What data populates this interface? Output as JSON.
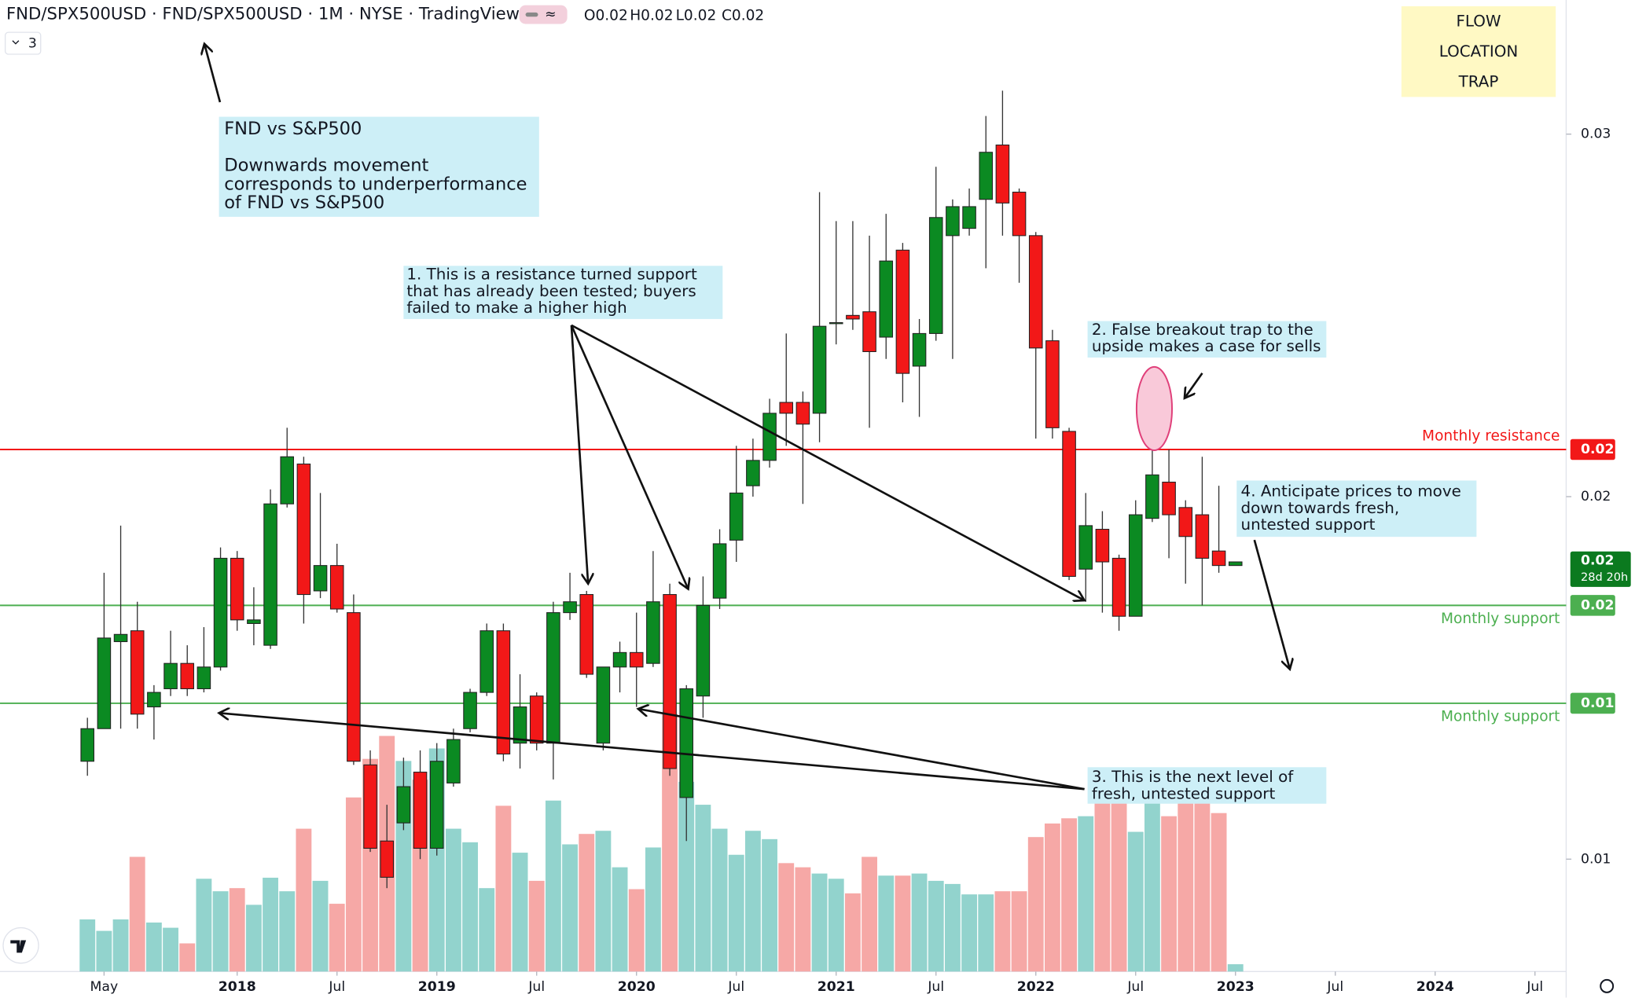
{
  "header": {
    "title": "FND/SPX500USD · FND/SPX500USD · 1M · NYSE · TradingView",
    "ohlc": [
      "O0.02",
      "H0.02",
      "L0.02",
      "C0.02"
    ],
    "indicators": "3"
  },
  "toolbar": [
    "FLOW",
    "LOCATION",
    "TRAP"
  ],
  "chart_data": {
    "type": "candlestick",
    "x": [
      "2017-04",
      "2017-05",
      "2017-06",
      "2017-07",
      "2017-08",
      "2017-09",
      "2017-10",
      "2017-11",
      "2017-12",
      "2018-01",
      "2018-02",
      "2018-03",
      "2018-04",
      "2018-05",
      "2018-06",
      "2018-07",
      "2018-08",
      "2018-09",
      "2018-10",
      "2018-11",
      "2018-12",
      "2019-01",
      "2019-02",
      "2019-03",
      "2019-04",
      "2019-05",
      "2019-06",
      "2019-07",
      "2019-08",
      "2019-09",
      "2019-10",
      "2019-11",
      "2019-12",
      "2020-01",
      "2020-02",
      "2020-03",
      "2020-04",
      "2020-05",
      "2020-06",
      "2020-07",
      "2020-08",
      "2020-09",
      "2020-10",
      "2020-11",
      "2020-12",
      "2021-01",
      "2021-02",
      "2021-03",
      "2021-04",
      "2021-05",
      "2021-06",
      "2021-07",
      "2021-08",
      "2021-09",
      "2021-10",
      "2021-11",
      "2021-12",
      "2022-01",
      "2022-02",
      "2022-03",
      "2022-04",
      "2022-05",
      "2022-06",
      "2022-07",
      "2022-08",
      "2022-09",
      "2022-10",
      "2022-11",
      "2022-12",
      "2023-01"
    ],
    "open": [
      0.0127,
      0.0136,
      0.016,
      0.0163,
      0.0142,
      0.0147,
      0.0154,
      0.0147,
      0.0153,
      0.0183,
      0.0165,
      0.0159,
      0.0198,
      0.0209,
      0.0174,
      0.0181,
      0.0168,
      0.0126,
      0.0105,
      0.011,
      0.0124,
      0.0103,
      0.0121,
      0.0136,
      0.0146,
      0.0163,
      0.0132,
      0.0145,
      0.0132,
      0.0168,
      0.0173,
      0.0132,
      0.0153,
      0.0157,
      0.0154,
      0.0173,
      0.0117,
      0.0145,
      0.0172,
      0.0188,
      0.0203,
      0.021,
      0.0226,
      0.0226,
      0.0223,
      0.0248,
      0.025,
      0.0251,
      0.0244,
      0.0268,
      0.0236,
      0.0245,
      0.0272,
      0.0274,
      0.0282,
      0.0297,
      0.0284,
      0.0272,
      0.0243,
      0.0218,
      0.018,
      0.0191,
      0.0183,
      0.0167,
      0.0194,
      0.0204,
      0.0197,
      0.0195,
      0.0185,
      0.0181
    ],
    "high": [
      0.0139,
      0.0179,
      0.0192,
      0.0171,
      0.0148,
      0.0163,
      0.0159,
      0.0164,
      0.0186,
      0.0185,
      0.0175,
      0.0202,
      0.0219,
      0.0211,
      0.0201,
      0.0187,
      0.0173,
      0.013,
      0.0115,
      0.0128,
      0.013,
      0.0132,
      0.0136,
      0.0147,
      0.0165,
      0.0165,
      0.0151,
      0.0146,
      0.0171,
      0.0179,
      0.0174,
      0.0153,
      0.016,
      0.0168,
      0.0185,
      0.0176,
      0.0148,
      0.0178,
      0.0191,
      0.0214,
      0.0216,
      0.0227,
      0.0245,
      0.0229,
      0.0284,
      0.0276,
      0.0276,
      0.0272,
      0.0278,
      0.027,
      0.0249,
      0.0291,
      0.0282,
      0.0285,
      0.0305,
      0.0312,
      0.0285,
      0.0273,
      0.0246,
      0.0219,
      0.0201,
      0.0196,
      0.0184,
      0.0199,
      0.0213,
      0.0213,
      0.0199,
      0.0211,
      0.0203,
      0.0182
    ],
    "low": [
      0.0123,
      0.0136,
      0.0136,
      0.0136,
      0.0133,
      0.0145,
      0.0145,
      0.0146,
      0.0152,
      0.0163,
      0.0159,
      0.0158,
      0.0197,
      0.0165,
      0.0172,
      0.0168,
      0.0126,
      0.0102,
      0.0092,
      0.0108,
      0.01,
      0.0101,
      0.012,
      0.0135,
      0.0145,
      0.0127,
      0.0125,
      0.013,
      0.0122,
      0.0166,
      0.015,
      0.013,
      0.0146,
      0.0142,
      0.0153,
      0.0123,
      0.0105,
      0.0139,
      0.0169,
      0.0182,
      0.02,
      0.0208,
      0.0214,
      0.0198,
      0.0215,
      0.0242,
      0.0246,
      0.0219,
      0.0238,
      0.0226,
      0.0222,
      0.0243,
      0.0238,
      0.0272,
      0.0263,
      0.0272,
      0.0259,
      0.0216,
      0.0216,
      0.0177,
      0.0171,
      0.0168,
      0.0163,
      0.0167,
      0.0193,
      0.0183,
      0.0176,
      0.017,
      0.0179,
      0.0181
    ],
    "close": [
      0.0136,
      0.0161,
      0.0162,
      0.014,
      0.0146,
      0.0154,
      0.0147,
      0.0153,
      0.0183,
      0.0166,
      0.0166,
      0.0198,
      0.0211,
      0.0173,
      0.0181,
      0.0169,
      0.0127,
      0.0103,
      0.0095,
      0.012,
      0.0103,
      0.0127,
      0.0133,
      0.0146,
      0.0163,
      0.0129,
      0.0142,
      0.0132,
      0.0168,
      0.0171,
      0.0151,
      0.0153,
      0.0157,
      0.0153,
      0.0171,
      0.0125,
      0.0147,
      0.017,
      0.0187,
      0.0201,
      0.021,
      0.0223,
      0.0223,
      0.022,
      0.0247,
      0.0248,
      0.0249,
      0.024,
      0.0265,
      0.0234,
      0.0245,
      0.0277,
      0.028,
      0.028,
      0.0295,
      0.0281,
      0.0272,
      0.0241,
      0.0219,
      0.0178,
      0.0192,
      0.0182,
      0.0167,
      0.0195,
      0.0206,
      0.0195,
      0.0189,
      0.0183,
      0.0181,
      0.0182
    ],
    "volume": [
      50,
      39,
      50,
      110,
      47,
      42,
      27,
      89,
      77,
      80,
      64,
      90,
      77,
      137,
      87,
      65,
      167,
      204,
      226,
      202,
      184,
      214,
      137,
      124,
      80,
      159,
      114,
      87,
      164,
      122,
      132,
      135,
      100,
      79,
      119,
      247,
      182,
      160,
      137,
      112,
      135,
      127,
      104,
      100,
      94,
      89,
      75,
      110,
      92,
      92,
      94,
      87,
      84,
      74,
      74,
      77,
      77,
      129,
      142,
      147,
      149,
      180,
      162,
      134,
      162,
      149,
      172,
      174,
      152,
      7
    ],
    "colors": {
      "up": "#0b8a22",
      "down": "#f21818",
      "volume_up": "#92d3cd",
      "volume_down": "#f6a8a6"
    },
    "ylim": [
      0.0069,
      0.0337
    ],
    "yticks": [
      0.03,
      0.02,
      0.01
    ],
    "xlim": [
      "2016-12",
      "2024-09"
    ],
    "xticks": [
      {
        "value": "2017-05",
        "label": "May"
      },
      {
        "value": "2018-01",
        "label": "2018"
      },
      {
        "value": "2018-07",
        "label": "Jul"
      },
      {
        "value": "2019-01",
        "label": "2019"
      },
      {
        "value": "2019-07",
        "label": "Jul"
      },
      {
        "value": "2020-01",
        "label": "2020"
      },
      {
        "value": "2020-07",
        "label": "Jul"
      },
      {
        "value": "2021-01",
        "label": "2021"
      },
      {
        "value": "2021-07",
        "label": "Jul"
      },
      {
        "value": "2022-01",
        "label": "2022"
      },
      {
        "value": "2022-07",
        "label": "Jul"
      },
      {
        "value": "2023-01",
        "label": "2023"
      },
      {
        "value": "2023-07",
        "label": "Jul"
      },
      {
        "value": "2024-01",
        "label": "2024"
      },
      {
        "value": "2024-07",
        "label": "Jul"
      }
    ],
    "levels": [
      {
        "name": "Monthly resistance",
        "value": 0.0213,
        "value_label": "0.02",
        "color": "#f21818"
      },
      {
        "name": "Monthly support",
        "value": 0.017,
        "value_label": "0.02",
        "color": "#4caf50"
      },
      {
        "name": "Monthly support",
        "value": 0.0143,
        "value_label": "0.01",
        "color": "#4caf50"
      }
    ],
    "last": {
      "value": 0.0182,
      "label": "0.02",
      "countdown": "28d 20h",
      "color": "#0b7a1f"
    },
    "annotations": [
      {
        "title": "FND vs S&P500",
        "lines": [
          "Downwards movement",
          "corresponds to underperformance",
          "of FND vs S&P500"
        ]
      },
      {
        "lines": [
          "1. This is a resistance turned support",
          "that has already been tested; buyers",
          "failed to make a higher high"
        ]
      },
      {
        "lines": [
          "2. False breakout trap to the",
          "upside makes a case for sells"
        ]
      },
      {
        "lines": [
          "3. This is the next level of",
          "fresh, untested support"
        ]
      },
      {
        "lines": [
          "4. Anticipate prices to move",
          "down towards fresh,",
          "untested support"
        ]
      }
    ]
  }
}
